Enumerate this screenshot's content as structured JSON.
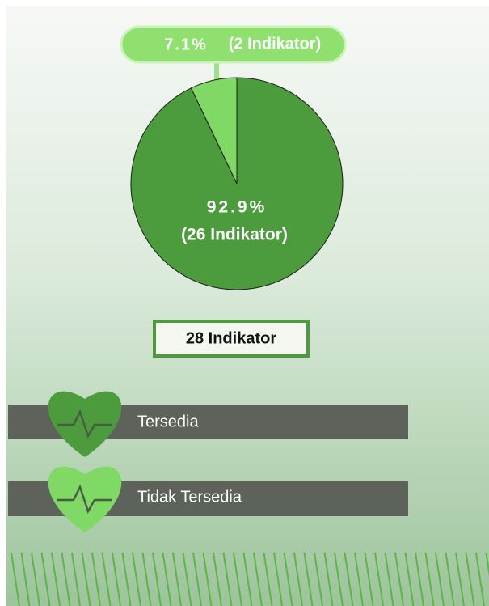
{
  "chart_data": {
    "type": "pie",
    "categories": [
      "Tersedia",
      "Tidak Tersedia"
    ],
    "values": [
      92.9,
      7.1
    ],
    "value_labels": [
      "92.9%",
      "7.1%"
    ],
    "count_labels": [
      "(26 Indikator)",
      "(2 Indikator)"
    ],
    "colors": [
      "#4c9b3c",
      "#80d865"
    ],
    "total_label": "28 Indikator"
  }
}
